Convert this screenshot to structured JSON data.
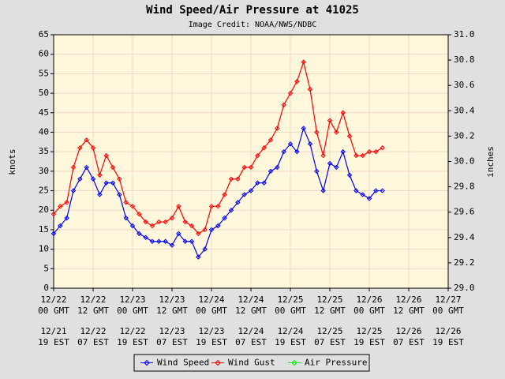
{
  "chart_data": {
    "type": "line",
    "title": "Wind Speed/Air Pressure at 41025",
    "subtitle": "Image Credit: NOAA/NWS/NDBC",
    "ylabel": "knots",
    "y2label": "inches",
    "x": [
      0,
      2,
      4,
      6,
      8,
      10,
      12,
      14,
      16,
      18,
      20,
      22,
      24,
      26,
      28,
      30,
      32,
      34,
      36,
      38,
      40,
      42,
      44,
      46,
      48,
      50,
      52,
      54,
      56,
      58,
      60,
      62,
      64,
      66,
      68,
      70,
      72,
      74,
      76,
      78,
      80,
      82,
      84,
      86,
      88,
      90,
      92,
      94,
      96,
      98,
      100
    ],
    "series": [
      {
        "name": "Wind Speed",
        "color": "#0000ff",
        "values": [
          14,
          16,
          18,
          25,
          28,
          31,
          28,
          24,
          27,
          27,
          24,
          18,
          16,
          14,
          13,
          12,
          12,
          12,
          11,
          14,
          12,
          12,
          8,
          10,
          15,
          16,
          18,
          20,
          22,
          24,
          25,
          27,
          27,
          30,
          31,
          35,
          37,
          35,
          41,
          37,
          30,
          25,
          32,
          31,
          35,
          29,
          25,
          24,
          23,
          25,
          25
        ]
      },
      {
        "name": "Wind Gust",
        "color": "#ff0000",
        "values": [
          19,
          21,
          22,
          31,
          36,
          38,
          36,
          29,
          34,
          31,
          28,
          22,
          21,
          19,
          17,
          16,
          17,
          17,
          18,
          21,
          17,
          16,
          14,
          15,
          21,
          21,
          24,
          28,
          28,
          31,
          31,
          34,
          36,
          38,
          41,
          47,
          50,
          53,
          58,
          51,
          40,
          34,
          43,
          40,
          45,
          39,
          34,
          34,
          35,
          35,
          36
        ]
      },
      {
        "name": "Air Pressure",
        "color": "#00ee00",
        "axis": "y2",
        "values": [
          null,
          null,
          null,
          null,
          null,
          null,
          null,
          null,
          null,
          null,
          null,
          null,
          null,
          null,
          null,
          null,
          null,
          null,
          null,
          null,
          null,
          null,
          null,
          null,
          null,
          null,
          null,
          null,
          null,
          null,
          null,
          null,
          null,
          null,
          null,
          null,
          null,
          null,
          null,
          null,
          null,
          null,
          null,
          null,
          null,
          null,
          null,
          null,
          null,
          null,
          null
        ]
      }
    ],
    "xlim": [
      0,
      120
    ],
    "xticks": [
      {
        "value": 0,
        "label": "12/22",
        "sublabel": "00 GMT"
      },
      {
        "value": 12,
        "label": "12/22",
        "sublabel": "12 GMT"
      },
      {
        "value": 24,
        "label": "12/23",
        "sublabel": "00 GMT"
      },
      {
        "value": 36,
        "label": "12/23",
        "sublabel": "12 GMT"
      },
      {
        "value": 48,
        "label": "12/24",
        "sublabel": "00 GMT"
      },
      {
        "value": 60,
        "label": "12/24",
        "sublabel": "12 GMT"
      },
      {
        "value": 72,
        "label": "12/25",
        "sublabel": "00 GMT"
      },
      {
        "value": 84,
        "label": "12/25",
        "sublabel": "12 GMT"
      },
      {
        "value": 96,
        "label": "12/26",
        "sublabel": "00 GMT"
      },
      {
        "value": 108,
        "label": "12/26",
        "sublabel": "12 GMT"
      },
      {
        "value": 120,
        "label": "12/27",
        "sublabel": "00 GMT"
      }
    ],
    "xticks_est": [
      {
        "value": 0,
        "label": "12/21",
        "sublabel": "19 EST"
      },
      {
        "value": 12,
        "label": "12/22",
        "sublabel": "07 EST"
      },
      {
        "value": 24,
        "label": "12/22",
        "sublabel": "19 EST"
      },
      {
        "value": 36,
        "label": "12/23",
        "sublabel": "07 EST"
      },
      {
        "value": 48,
        "label": "12/23",
        "sublabel": "19 EST"
      },
      {
        "value": 60,
        "label": "12/24",
        "sublabel": "07 EST"
      },
      {
        "value": 72,
        "label": "12/24",
        "sublabel": "19 EST"
      },
      {
        "value": 84,
        "label": "12/25",
        "sublabel": "07 EST"
      },
      {
        "value": 96,
        "label": "12/25",
        "sublabel": "19 EST"
      },
      {
        "value": 108,
        "label": "12/26",
        "sublabel": "07 EST"
      },
      {
        "value": 120,
        "label": "12/26",
        "sublabel": "19 EST"
      }
    ],
    "ylim": [
      0,
      65
    ],
    "yticks": [
      0,
      5,
      10,
      15,
      20,
      25,
      30,
      35,
      40,
      45,
      50,
      55,
      60,
      65
    ],
    "y2lim": [
      29,
      31
    ],
    "y2ticks": [
      {
        "value": 29,
        "label": "29.0"
      },
      29.2,
      29.4,
      29.6,
      29.8,
      {
        "value": 30,
        "label": "30.0"
      },
      30.2,
      30.4,
      30.6,
      30.8,
      {
        "value": 31,
        "label": "31.0"
      }
    ],
    "grid": true,
    "legend": "bottom"
  }
}
